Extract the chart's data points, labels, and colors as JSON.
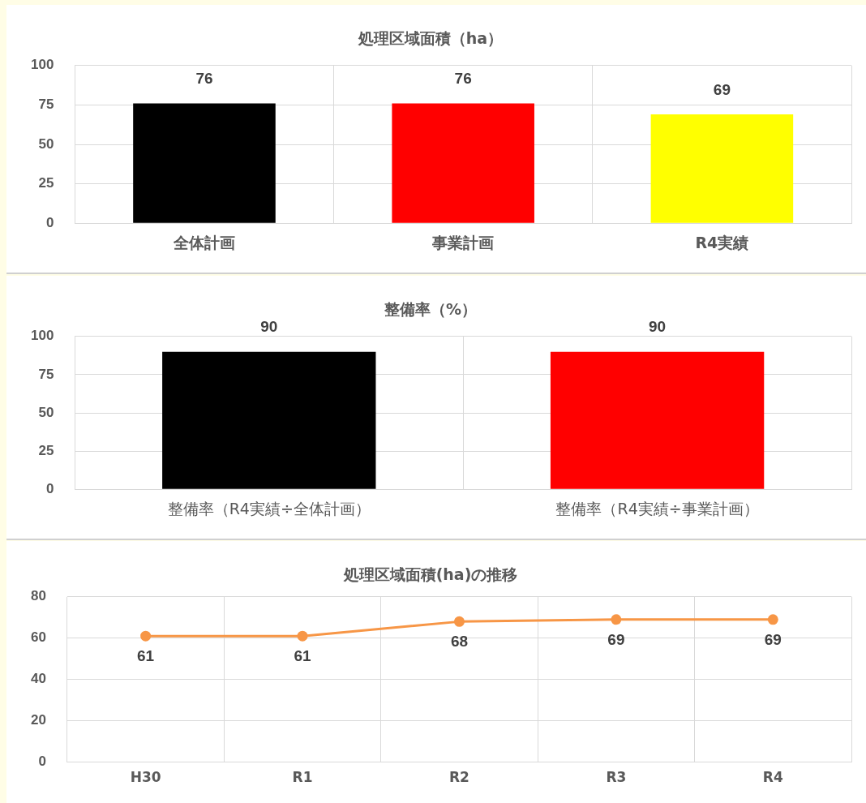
{
  "chart_data": [
    {
      "type": "bar",
      "title": "処理区域面積（ha）",
      "categories": [
        "全体計画",
        "事業計画",
        "R4実績"
      ],
      "values": [
        76,
        76,
        69
      ],
      "colors": [
        "#000000",
        "#ff0000",
        "#ffff00"
      ],
      "ylim": [
        0,
        100
      ],
      "yticks": [
        0,
        25,
        50,
        75,
        100
      ],
      "grid": true,
      "data_labels": true
    },
    {
      "type": "bar",
      "title": "整備率（%）",
      "categories": [
        "整備率（R4実績÷全体計画）",
        "整備率（R4実績÷事業計画）"
      ],
      "values": [
        90,
        90
      ],
      "colors": [
        "#000000",
        "#ff0000"
      ],
      "ylim": [
        0,
        100
      ],
      "yticks": [
        0,
        25,
        50,
        75,
        100
      ],
      "grid": true,
      "data_labels": true
    },
    {
      "type": "line",
      "title": "処理区域面積(ha)の推移",
      "categories": [
        "H30",
        "R1",
        "R2",
        "R3",
        "R4"
      ],
      "values": [
        61,
        61,
        68,
        69,
        69
      ],
      "color": "#f79646",
      "marker": "circle",
      "ylim": [
        0,
        80
      ],
      "yticks": [
        0,
        20,
        40,
        60,
        80
      ],
      "grid": true,
      "data_labels": true
    }
  ]
}
